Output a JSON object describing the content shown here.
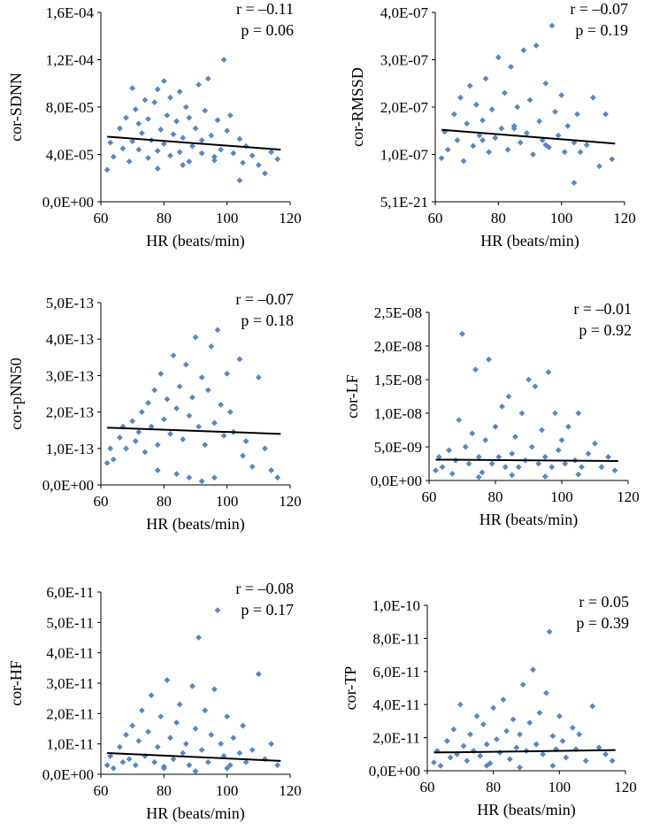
{
  "colors": {
    "marker": "#5a87c4",
    "trend": "#000000",
    "axis": "#000000"
  },
  "chart_data": [
    {
      "type": "scatter",
      "title": "",
      "xlabel": "HR (beats/min)",
      "ylabel": "cor-SDNN",
      "xlim": [
        60,
        120
      ],
      "ylim": [
        0,
        0.00016
      ],
      "x_ticks": [
        "60",
        "80",
        "100",
        "120"
      ],
      "y_ticks": [
        "0,0E+00",
        "4,0E-05",
        "8,0E-05",
        "1,2E-04",
        "1,6E-04"
      ],
      "annotation": {
        "r": "r = –0.11",
        "p": "p = 0.06"
      },
      "trend": {
        "x": [
          62,
          117
        ],
        "y": [
          5.5e-05,
          4.4e-05
        ]
      },
      "points": {
        "x": [
          62,
          63,
          64,
          66,
          67,
          68,
          69,
          70,
          70,
          71,
          72,
          72,
          73,
          74,
          75,
          75,
          76,
          77,
          78,
          78,
          79,
          80,
          80,
          81,
          82,
          82,
          83,
          84,
          85,
          85,
          86,
          87,
          88,
          88,
          89,
          90,
          91,
          92,
          92,
          93,
          94,
          95,
          96,
          97,
          98,
          99,
          100,
          101,
          102,
          104,
          105,
          106,
          108,
          110,
          112,
          114,
          116,
          78,
          86,
          96,
          104
        ],
        "y": [
          2.7e-05,
          5e-05,
          3.8e-05,
          6.2e-05,
          4.5e-05,
          7.1e-05,
          3.4e-05,
          9.6e-05,
          5.1e-05,
          7.8e-05,
          4.4e-05,
          6.6e-05,
          5.8e-05,
          8.6e-05,
          3.7e-05,
          7e-05,
          5.2e-05,
          8.4e-05,
          4.3e-05,
          9.5e-05,
          6.1e-05,
          0.000102,
          4.9e-05,
          7.3e-05,
          3.9e-05,
          8.8e-05,
          5.7e-05,
          6.8e-05,
          4.2e-05,
          9.3e-05,
          5.4e-05,
          8e-05,
          3.4e-05,
          7.1e-05,
          4.7e-05,
          6.2e-05,
          9.9e-05,
          5.2e-05,
          4.1e-05,
          7.7e-05,
          0.000104,
          5.6e-05,
          3.8e-05,
          6.9e-05,
          4.4e-05,
          0.00012,
          6e-05,
          7.3e-05,
          4.1e-05,
          5.3e-05,
          3.3e-05,
          4.7e-05,
          3.9e-05,
          3.1e-05,
          2.4e-05,
          4.2e-05,
          3.6e-05,
          2.8e-05,
          3.1e-05,
          3.5e-05,
          1.8e-05
        ]
      }
    },
    {
      "type": "scatter",
      "title": "",
      "xlabel": "HR (beats/min)",
      "ylabel": "cor-RMSSD",
      "xlim": [
        60,
        120
      ],
      "ylim": [
        0,
        4e-07
      ],
      "x_ticks": [
        "60",
        "80",
        "100",
        "120"
      ],
      "y_ticks": [
        "5,1E-21",
        "1,0E-07",
        "2,0E-07",
        "3,0E-07",
        "4,0E-07"
      ],
      "annotation": {
        "r": "r = –0.07",
        "p": "p = 0.19"
      },
      "trend": {
        "x": [
          62,
          117
        ],
        "y": [
          1.52e-07,
          1.23e-07
        ]
      },
      "points": {
        "x": [
          62,
          63,
          64,
          66,
          67,
          68,
          69,
          70,
          71,
          72,
          73,
          74,
          75,
          76,
          77,
          78,
          79,
          80,
          81,
          82,
          83,
          84,
          85,
          86,
          87,
          88,
          89,
          90,
          91,
          92,
          93,
          94,
          95,
          96,
          97,
          98,
          99,
          100,
          101,
          102,
          104,
          105,
          106,
          108,
          110,
          112,
          114,
          116,
          75,
          85,
          95,
          104
        ],
        "y": [
          9.2e-08,
          1.48e-07,
          1.1e-07,
          1.85e-07,
          1.3e-07,
          2.2e-07,
          8.6e-08,
          1.65e-07,
          2.45e-07,
          1.18e-07,
          2.05e-07,
          1.4e-07,
          1.72e-07,
          2.6e-07,
          1.05e-07,
          1.95e-07,
          1.35e-07,
          3.05e-07,
          1.55e-07,
          2.3e-07,
          1.1e-07,
          2.85e-07,
          1.6e-07,
          2e-07,
          1.25e-07,
          3.2e-07,
          1.45e-07,
          2.15e-07,
          1e-07,
          3.3e-07,
          1.7e-07,
          1.3e-07,
          2.5e-07,
          1.15e-07,
          3.72e-07,
          1.9e-07,
          1.4e-07,
          2.25e-07,
          1.05e-07,
          1.6e-07,
          1.25e-07,
          1.85e-07,
          1.05e-07,
          1.2e-07,
          2.2e-07,
          7.5e-08,
          1.85e-07,
          9e-08,
          1.3e-07,
          1.55e-07,
          1.2e-07,
          4e-08
        ]
      }
    },
    {
      "type": "scatter",
      "title": "",
      "xlabel": "HR (beats/min)",
      "ylabel": "cor-pNN50",
      "xlim": [
        60,
        120
      ],
      "ylim": [
        0,
        5e-13
      ],
      "x_ticks": [
        "60",
        "80",
        "100",
        "120"
      ],
      "y_ticks": [
        "0,0E+00",
        "1,0E-13",
        "2,0E-13",
        "3,0E-13",
        "4,0E-13",
        "5,0E-13"
      ],
      "annotation": {
        "r": "r = –0.07",
        "p": "p = 0.18"
      },
      "trend": {
        "x": [
          62,
          117
        ],
        "y": [
          1.57e-13,
          1.4e-13
        ]
      },
      "points": {
        "x": [
          62,
          63,
          64,
          66,
          67,
          68,
          70,
          71,
          72,
          73,
          74,
          75,
          76,
          77,
          78,
          79,
          80,
          81,
          82,
          83,
          84,
          85,
          86,
          87,
          88,
          89,
          90,
          91,
          92,
          93,
          94,
          95,
          96,
          97,
          98,
          99,
          100,
          101,
          102,
          104,
          105,
          106,
          108,
          110,
          112,
          114,
          116,
          78,
          84,
          88,
          92,
          96
        ],
        "y": [
          6e-14,
          1e-13,
          7e-14,
          1.3e-13,
          1.6e-13,
          1e-13,
          1.75e-13,
          1.2e-13,
          1.45e-13,
          2e-13,
          9e-14,
          2.25e-13,
          1.6e-13,
          2.6e-13,
          1.1e-13,
          3.05e-13,
          1.8e-13,
          2.35e-13,
          1.4e-13,
          3.55e-13,
          2.1e-13,
          2.7e-13,
          1.25e-13,
          3.3e-13,
          1.9e-13,
          2.4e-13,
          4.05e-13,
          1.6e-13,
          2.95e-13,
          1.1e-13,
          2.6e-13,
          3.8e-13,
          1.7e-13,
          4.25e-13,
          2.2e-13,
          1.35e-13,
          3.05e-13,
          2e-13,
          1.45e-13,
          3.45e-13,
          8e-14,
          1.2e-13,
          5e-14,
          2.95e-13,
          1e-13,
          4e-14,
          2e-14,
          4e-14,
          3e-14,
          2e-14,
          1e-14,
          2e-14
        ]
      }
    },
    {
      "type": "scatter",
      "title": "",
      "xlabel": "HR (beats/min)",
      "ylabel": "cor-LF",
      "xlim": [
        60,
        120
      ],
      "ylim": [
        0,
        2.5e-08
      ],
      "x_ticks": [
        "60",
        "80",
        "100",
        "120"
      ],
      "y_ticks": [
        "0,0E+00",
        "5,0E-09",
        "1,0E-08",
        "1,5E-08",
        "2,0E-08",
        "2,5E-08"
      ],
      "annotation": {
        "r": "r = –0.01",
        "p": "p = 0.92"
      },
      "trend": {
        "x": [
          62,
          117
        ],
        "y": [
          3.1e-09,
          2.9e-09
        ]
      },
      "points": {
        "x": [
          62,
          63,
          64,
          66,
          67,
          68,
          69,
          70,
          71,
          72,
          73,
          74,
          75,
          76,
          77,
          78,
          79,
          80,
          81,
          82,
          83,
          84,
          85,
          86,
          87,
          88,
          89,
          90,
          91,
          92,
          93,
          94,
          95,
          96,
          97,
          98,
          99,
          100,
          101,
          102,
          104,
          105,
          106,
          108,
          110,
          112,
          114,
          116,
          75,
          85,
          95,
          105
        ],
        "y": [
          1.5e-09,
          3.5e-09,
          2e-09,
          4.5e-09,
          1e-09,
          3e-09,
          9e-09,
          2.18e-08,
          5e-09,
          2.5e-09,
          7e-09,
          1.65e-08,
          3.5e-09,
          1.2e-09,
          6e-09,
          1.8e-08,
          2.5e-09,
          8e-09,
          3.5e-09,
          1.1e-08,
          2e-09,
          1.25e-08,
          4e-09,
          6.5e-09,
          2e-09,
          1e-08,
          3e-09,
          1.5e-08,
          5e-09,
          1.4e-08,
          2.5e-09,
          7.5e-09,
          3.5e-09,
          1.61e-08,
          2e-09,
          1e-08,
          4.5e-09,
          6e-09,
          2.5e-09,
          8e-09,
          3e-09,
          1e-08,
          2e-09,
          4e-09,
          5.5e-09,
          2e-09,
          3.5e-09,
          1.5e-09,
          5e-10,
          8e-10,
          6e-10,
          9e-10
        ]
      }
    },
    {
      "type": "scatter",
      "title": "",
      "xlabel": "HR (beats/min)",
      "ylabel": "cor-HF",
      "xlim": [
        60,
        120
      ],
      "ylim": [
        0,
        6e-11
      ],
      "x_ticks": [
        "60",
        "80",
        "100",
        "120"
      ],
      "y_ticks": [
        "0,0E+00",
        "1,0E-11",
        "2,0E-11",
        "3,0E-11",
        "4,0E-11",
        "5,0E-11",
        "6,0E-11"
      ],
      "annotation": {
        "r": "r = –0.08",
        "p": "p = 0.17"
      },
      "trend": {
        "x": [
          62,
          117
        ],
        "y": [
          7e-12,
          4.4e-12
        ]
      },
      "points": {
        "x": [
          62,
          63,
          64,
          66,
          67,
          68,
          69,
          70,
          71,
          72,
          73,
          74,
          75,
          76,
          77,
          78,
          79,
          80,
          81,
          82,
          83,
          84,
          85,
          86,
          87,
          88,
          89,
          90,
          91,
          92,
          93,
          94,
          95,
          96,
          97,
          98,
          99,
          100,
          101,
          102,
          104,
          105,
          106,
          108,
          110,
          112,
          114,
          116,
          80,
          90,
          100
        ],
        "y": [
          3e-12,
          6e-12,
          2e-12,
          9e-12,
          4e-12,
          1.3e-11,
          5e-12,
          1.6e-11,
          3e-12,
          1.1e-11,
          2.1e-11,
          6e-12,
          1.4e-11,
          2.6e-11,
          4e-12,
          9e-12,
          1.9e-11,
          2.5e-12,
          3.1e-11,
          1.2e-11,
          5e-12,
          1.7e-11,
          2.3e-11,
          7e-12,
          1e-11,
          3e-12,
          2.9e-11,
          1.5e-11,
          4.5e-11,
          8e-12,
          2.1e-11,
          4e-12,
          1.3e-11,
          2.8e-11,
          5.4e-11,
          1e-11,
          6e-12,
          1.9e-11,
          3e-12,
          1.2e-11,
          7e-12,
          1.6e-11,
          4e-12,
          8e-12,
          3.3e-11,
          5e-12,
          1e-11,
          3e-12,
          2e-12,
          1e-12,
          2e-12
        ]
      }
    },
    {
      "type": "scatter",
      "title": "",
      "xlabel": "HR (beats/min)",
      "ylabel": "cor-TP",
      "xlim": [
        60,
        120
      ],
      "ylim": [
        0,
        1e-10
      ],
      "x_ticks": [
        "60",
        "80",
        "100",
        "120"
      ],
      "y_ticks": [
        "0,0E+00",
        "2,0E-11",
        "4,0E-11",
        "6,0E-11",
        "8,0E-11",
        "1,0E-10"
      ],
      "annotation": {
        "r": "r = 0.05",
        "p": "p = 0.39"
      },
      "trend": {
        "x": [
          62,
          117
        ],
        "y": [
          1.1e-11,
          1.25e-11
        ]
      },
      "points": {
        "x": [
          62,
          63,
          64,
          66,
          67,
          68,
          69,
          70,
          71,
          72,
          73,
          74,
          75,
          76,
          77,
          78,
          79,
          80,
          81,
          82,
          83,
          84,
          85,
          86,
          87,
          88,
          89,
          90,
          91,
          92,
          93,
          94,
          95,
          96,
          97,
          98,
          99,
          100,
          101,
          102,
          104,
          105,
          106,
          108,
          110,
          112,
          114,
          116,
          78,
          88,
          98
        ],
        "y": [
          5e-12,
          1.2e-11,
          3e-12,
          1.8e-11,
          8e-12,
          2.5e-11,
          1e-11,
          4e-11,
          1.5e-11,
          6e-12,
          2.2e-11,
          1.2e-11,
          3.3e-11,
          9e-12,
          2.8e-11,
          1.6e-11,
          4.5e-12,
          3.8e-11,
          1.9e-11,
          1.1e-11,
          4.3e-11,
          2.4e-11,
          7e-12,
          3.1e-11,
          1.4e-11,
          2.2e-11,
          5.2e-11,
          1.2e-11,
          2.9e-11,
          6.1e-11,
          1.6e-11,
          3.5e-11,
          1e-11,
          4.7e-11,
          8.4e-11,
          2.1e-11,
          1.3e-11,
          3.3e-11,
          1.8e-11,
          8e-12,
          2.6e-11,
          1.3e-11,
          2.2e-11,
          6e-12,
          3.9e-11,
          1.4e-11,
          1e-11,
          6e-12,
          3e-12,
          2e-12,
          3e-12
        ]
      }
    }
  ]
}
